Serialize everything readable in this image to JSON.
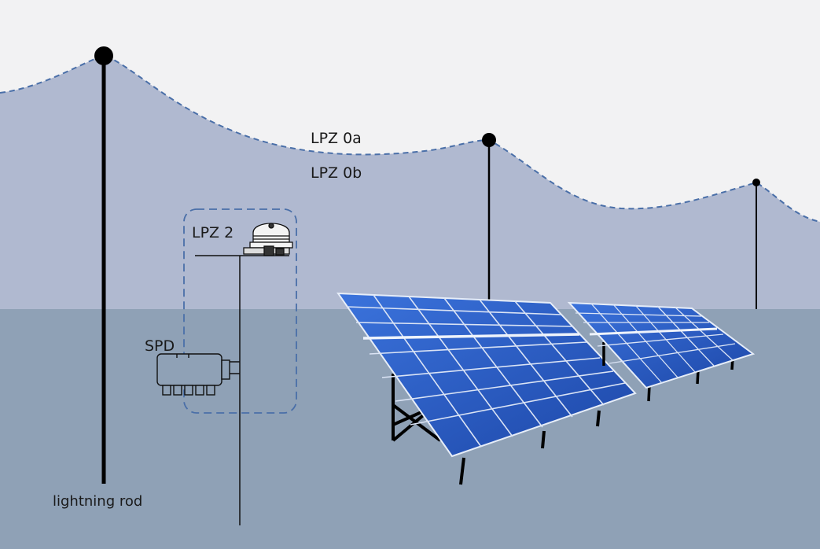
{
  "labels": {
    "lpz_0a": "LPZ 0a",
    "lpz_0b": "LPZ 0b",
    "lpz_2": "LPZ 2",
    "spd": "SPD",
    "lightning_rod": "lightning rod"
  },
  "colors": {
    "sky": "#f2f2f3",
    "protected_zone": "#b0b9d0",
    "ground": "#8fa1b6",
    "zone_boundary": "#4a6fa8",
    "panel_cell": "#2a5bc4",
    "panel_line": "#d9e3f4",
    "mast": "#000000"
  }
}
